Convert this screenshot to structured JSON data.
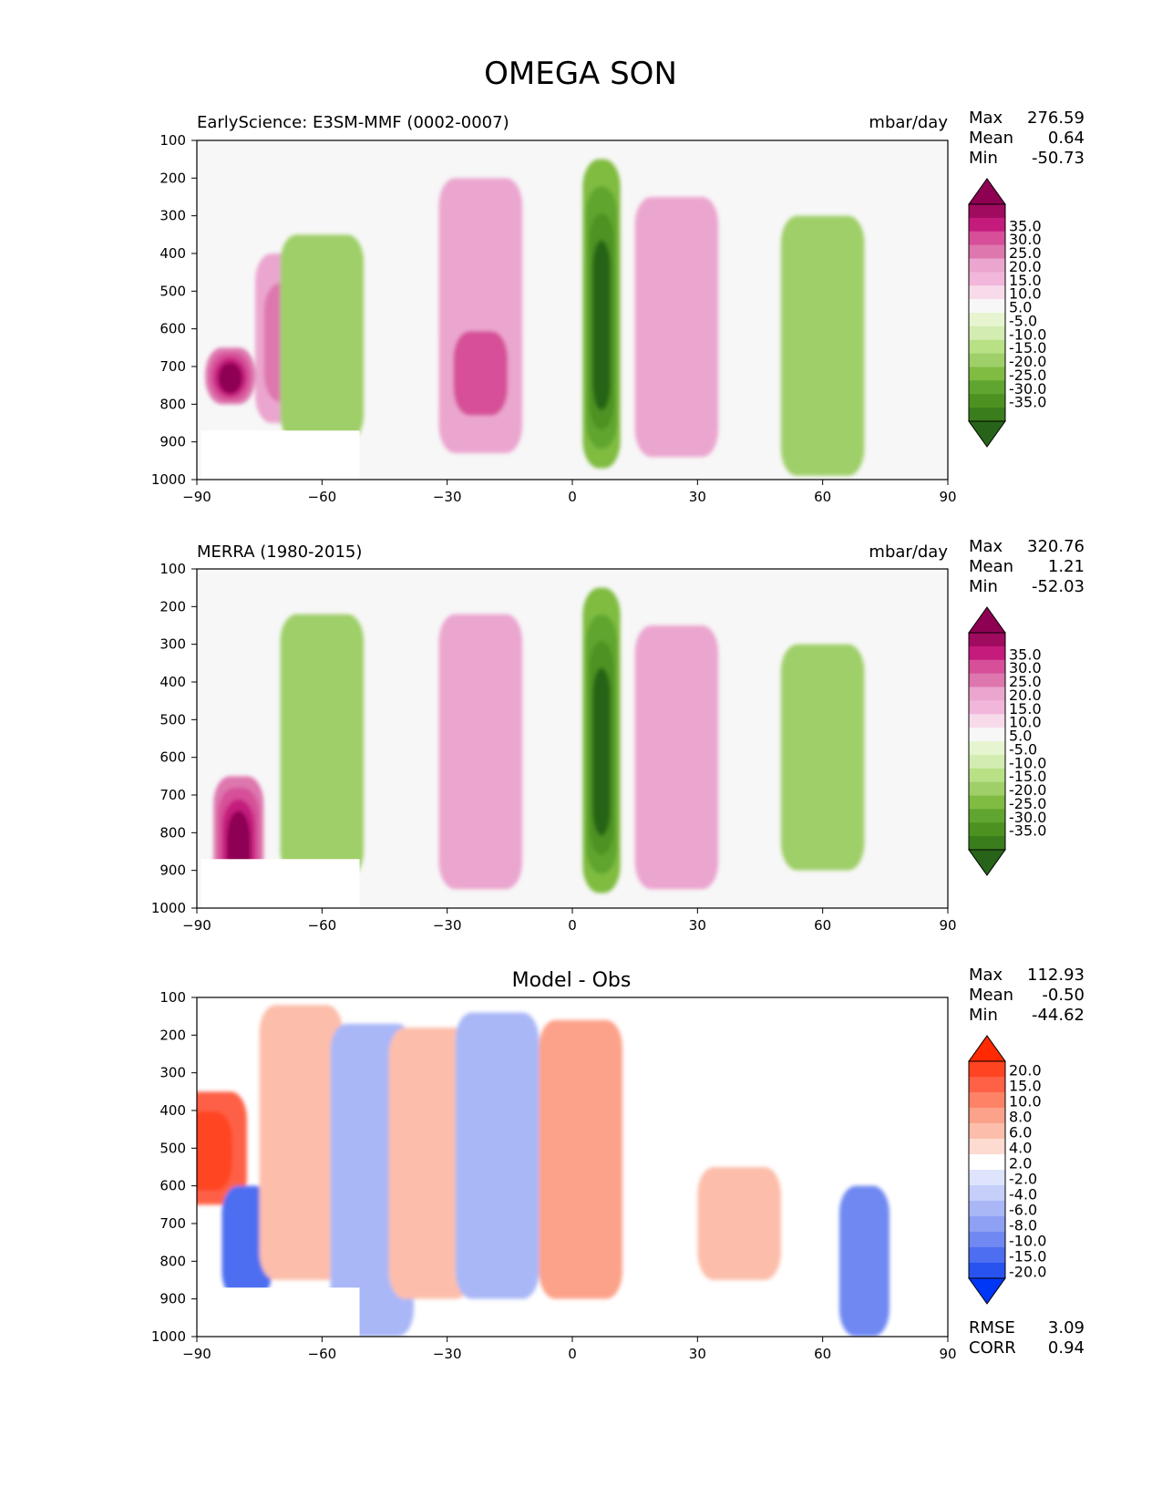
{
  "figure": {
    "title": "OMEGA SON"
  },
  "chart_data": [
    {
      "type": "heatmap",
      "id": "model",
      "title": "EarlyScience: E3SM-MMF (0002-0007)",
      "units": "mbar/day",
      "xlabel": "",
      "ylabel": "",
      "xlim": [
        -90,
        90
      ],
      "ylim": [
        1000,
        100
      ],
      "xticks": [
        -90,
        -60,
        -30,
        0,
        30,
        60,
        90
      ],
      "yticks": [
        100,
        200,
        300,
        400,
        500,
        600,
        700,
        800,
        900,
        1000
      ],
      "stats": {
        "max_label": "Max",
        "max": "276.59",
        "mean_label": "Mean",
        "mean": "0.64",
        "min_label": "Min",
        "min": "-50.73"
      },
      "colorbar": {
        "labels": [
          "35.0",
          "30.0",
          "25.0",
          "20.0",
          "15.0",
          "10.0",
          "5.0",
          "-5.0",
          "-10.0",
          "-15.0",
          "-20.0",
          "-25.0",
          "-30.0",
          "-35.0"
        ],
        "colors": [
          "#8e0152",
          "#9f0b5e",
          "#c51b7d",
          "#d64f98",
          "#de77ae",
          "#eba6cf",
          "#f1b6da",
          "#f8dbea",
          "#f7f7f7",
          "#e6f5d0",
          "#d3ecb1",
          "#b8e186",
          "#9fcf69",
          "#7fbc41",
          "#5fa52f",
          "#4d9221",
          "#3a7d1d",
          "#276419"
        ]
      },
      "features": [
        {
          "type": "strip",
          "lat_center": -82,
          "band": "800-650",
          "value": 35
        },
        {
          "type": "strip",
          "lat_center": -70,
          "band": "850-400",
          "value": 15
        },
        {
          "type": "cell",
          "lat_center": -60,
          "band": "900-350",
          "value": -10
        },
        {
          "type": "cell",
          "lat_center": -22,
          "band": "930-200",
          "value": 10
        },
        {
          "type": "cell",
          "lat_center": -22,
          "band": "870-550",
          "value": 20
        },
        {
          "type": "cell",
          "lat_center": 7,
          "band": "970-150",
          "value": -35
        },
        {
          "type": "cell",
          "lat_center": 25,
          "band": "940-250",
          "value": 10
        },
        {
          "type": "cell",
          "lat_center": 60,
          "band": "990-300",
          "value": -10
        }
      ],
      "missing_below_topography": true
    },
    {
      "type": "heatmap",
      "id": "obs",
      "title": "MERRA (1980-2015)",
      "units": "mbar/day",
      "xlabel": "",
      "ylabel": "",
      "xlim": [
        -90,
        90
      ],
      "ylim": [
        1000,
        100
      ],
      "xticks": [
        -90,
        -60,
        -30,
        0,
        30,
        60,
        90
      ],
      "yticks": [
        100,
        200,
        300,
        400,
        500,
        600,
        700,
        800,
        900,
        1000
      ],
      "stats": {
        "max_label": "Max",
        "max": "320.76",
        "mean_label": "Mean",
        "mean": "1.21",
        "min_label": "Min",
        "min": "-52.03"
      },
      "colorbar": {
        "labels": [
          "35.0",
          "30.0",
          "25.0",
          "20.0",
          "15.0",
          "10.0",
          "5.0",
          "-5.0",
          "-10.0",
          "-15.0",
          "-20.0",
          "-25.0",
          "-30.0",
          "-35.0"
        ],
        "colors": [
          "#8e0152",
          "#9f0b5e",
          "#c51b7d",
          "#d64f98",
          "#de77ae",
          "#eba6cf",
          "#f1b6da",
          "#f8dbea",
          "#f7f7f7",
          "#e6f5d0",
          "#d3ecb1",
          "#b8e186",
          "#9fcf69",
          "#7fbc41",
          "#5fa52f",
          "#4d9221",
          "#3a7d1d",
          "#276419"
        ]
      },
      "features": [
        {
          "type": "strip",
          "lat_center": -80,
          "band": "1000-650",
          "value": 35
        },
        {
          "type": "cell",
          "lat_center": -60,
          "band": "920-220",
          "value": -10
        },
        {
          "type": "cell",
          "lat_center": -22,
          "band": "950-220",
          "value": 10
        },
        {
          "type": "cell",
          "lat_center": 7,
          "band": "960-150",
          "value": -35
        },
        {
          "type": "cell",
          "lat_center": 25,
          "band": "950-250",
          "value": 10
        },
        {
          "type": "cell",
          "lat_center": 60,
          "band": "900-300",
          "value": -10
        }
      ],
      "missing_below_topography": true
    },
    {
      "type": "heatmap",
      "id": "diff",
      "title": "Model - Obs",
      "xlabel": "",
      "ylabel": "",
      "xlim": [
        -90,
        90
      ],
      "ylim": [
        1000,
        100
      ],
      "xticks": [
        -90,
        -60,
        -30,
        0,
        30,
        60,
        90
      ],
      "yticks": [
        100,
        200,
        300,
        400,
        500,
        600,
        700,
        800,
        900,
        1000
      ],
      "stats": {
        "max_label": "Max",
        "max": "112.93",
        "mean_label": "Mean",
        "mean": "-0.50",
        "min_label": "Min",
        "min": "-44.62",
        "rmse_label": "RMSE",
        "rmse": "3.09",
        "corr_label": "CORR",
        "corr": "0.94"
      },
      "colorbar": {
        "labels": [
          "20.0",
          "15.0",
          "10.0",
          "8.0",
          "6.0",
          "4.0",
          "2.0",
          "-2.0",
          "-4.0",
          "-6.0",
          "-8.0",
          "-10.0",
          "-15.0",
          "-20.0"
        ],
        "colors": [
          "#ff2a00",
          "#ff4422",
          "#fe6146",
          "#fd8266",
          "#fca28a",
          "#fcbeaa",
          "#fddbd0",
          "#ffffff",
          "#dee4fc",
          "#c5cffa",
          "#a9b7f7",
          "#8da0f4",
          "#6f88f2",
          "#4d6ef0",
          "#2853ef",
          "#0036f5"
        ]
      },
      "features": [
        {
          "type": "cell",
          "lat_center": -88,
          "band": "650-350",
          "value": 15
        },
        {
          "type": "strip",
          "lat_center": -78,
          "band": "900-600",
          "value": -10
        },
        {
          "type": "cell",
          "lat_center": -65,
          "band": "850-120",
          "value": 4
        },
        {
          "type": "cell",
          "lat_center": -48,
          "band": "1000-170",
          "value": -4
        },
        {
          "type": "cell",
          "lat_center": -34,
          "band": "900-180",
          "value": 4
        },
        {
          "type": "cell",
          "lat_center": -18,
          "band": "900-140",
          "value": -4
        },
        {
          "type": "cell",
          "lat_center": 2,
          "band": "900-160",
          "value": 6
        },
        {
          "type": "cell",
          "lat_center": 40,
          "band": "850-550",
          "value": 4
        },
        {
          "type": "strip",
          "lat_center": 70,
          "band": "1000-600",
          "value": -8
        }
      ],
      "missing_below_topography": true
    }
  ]
}
